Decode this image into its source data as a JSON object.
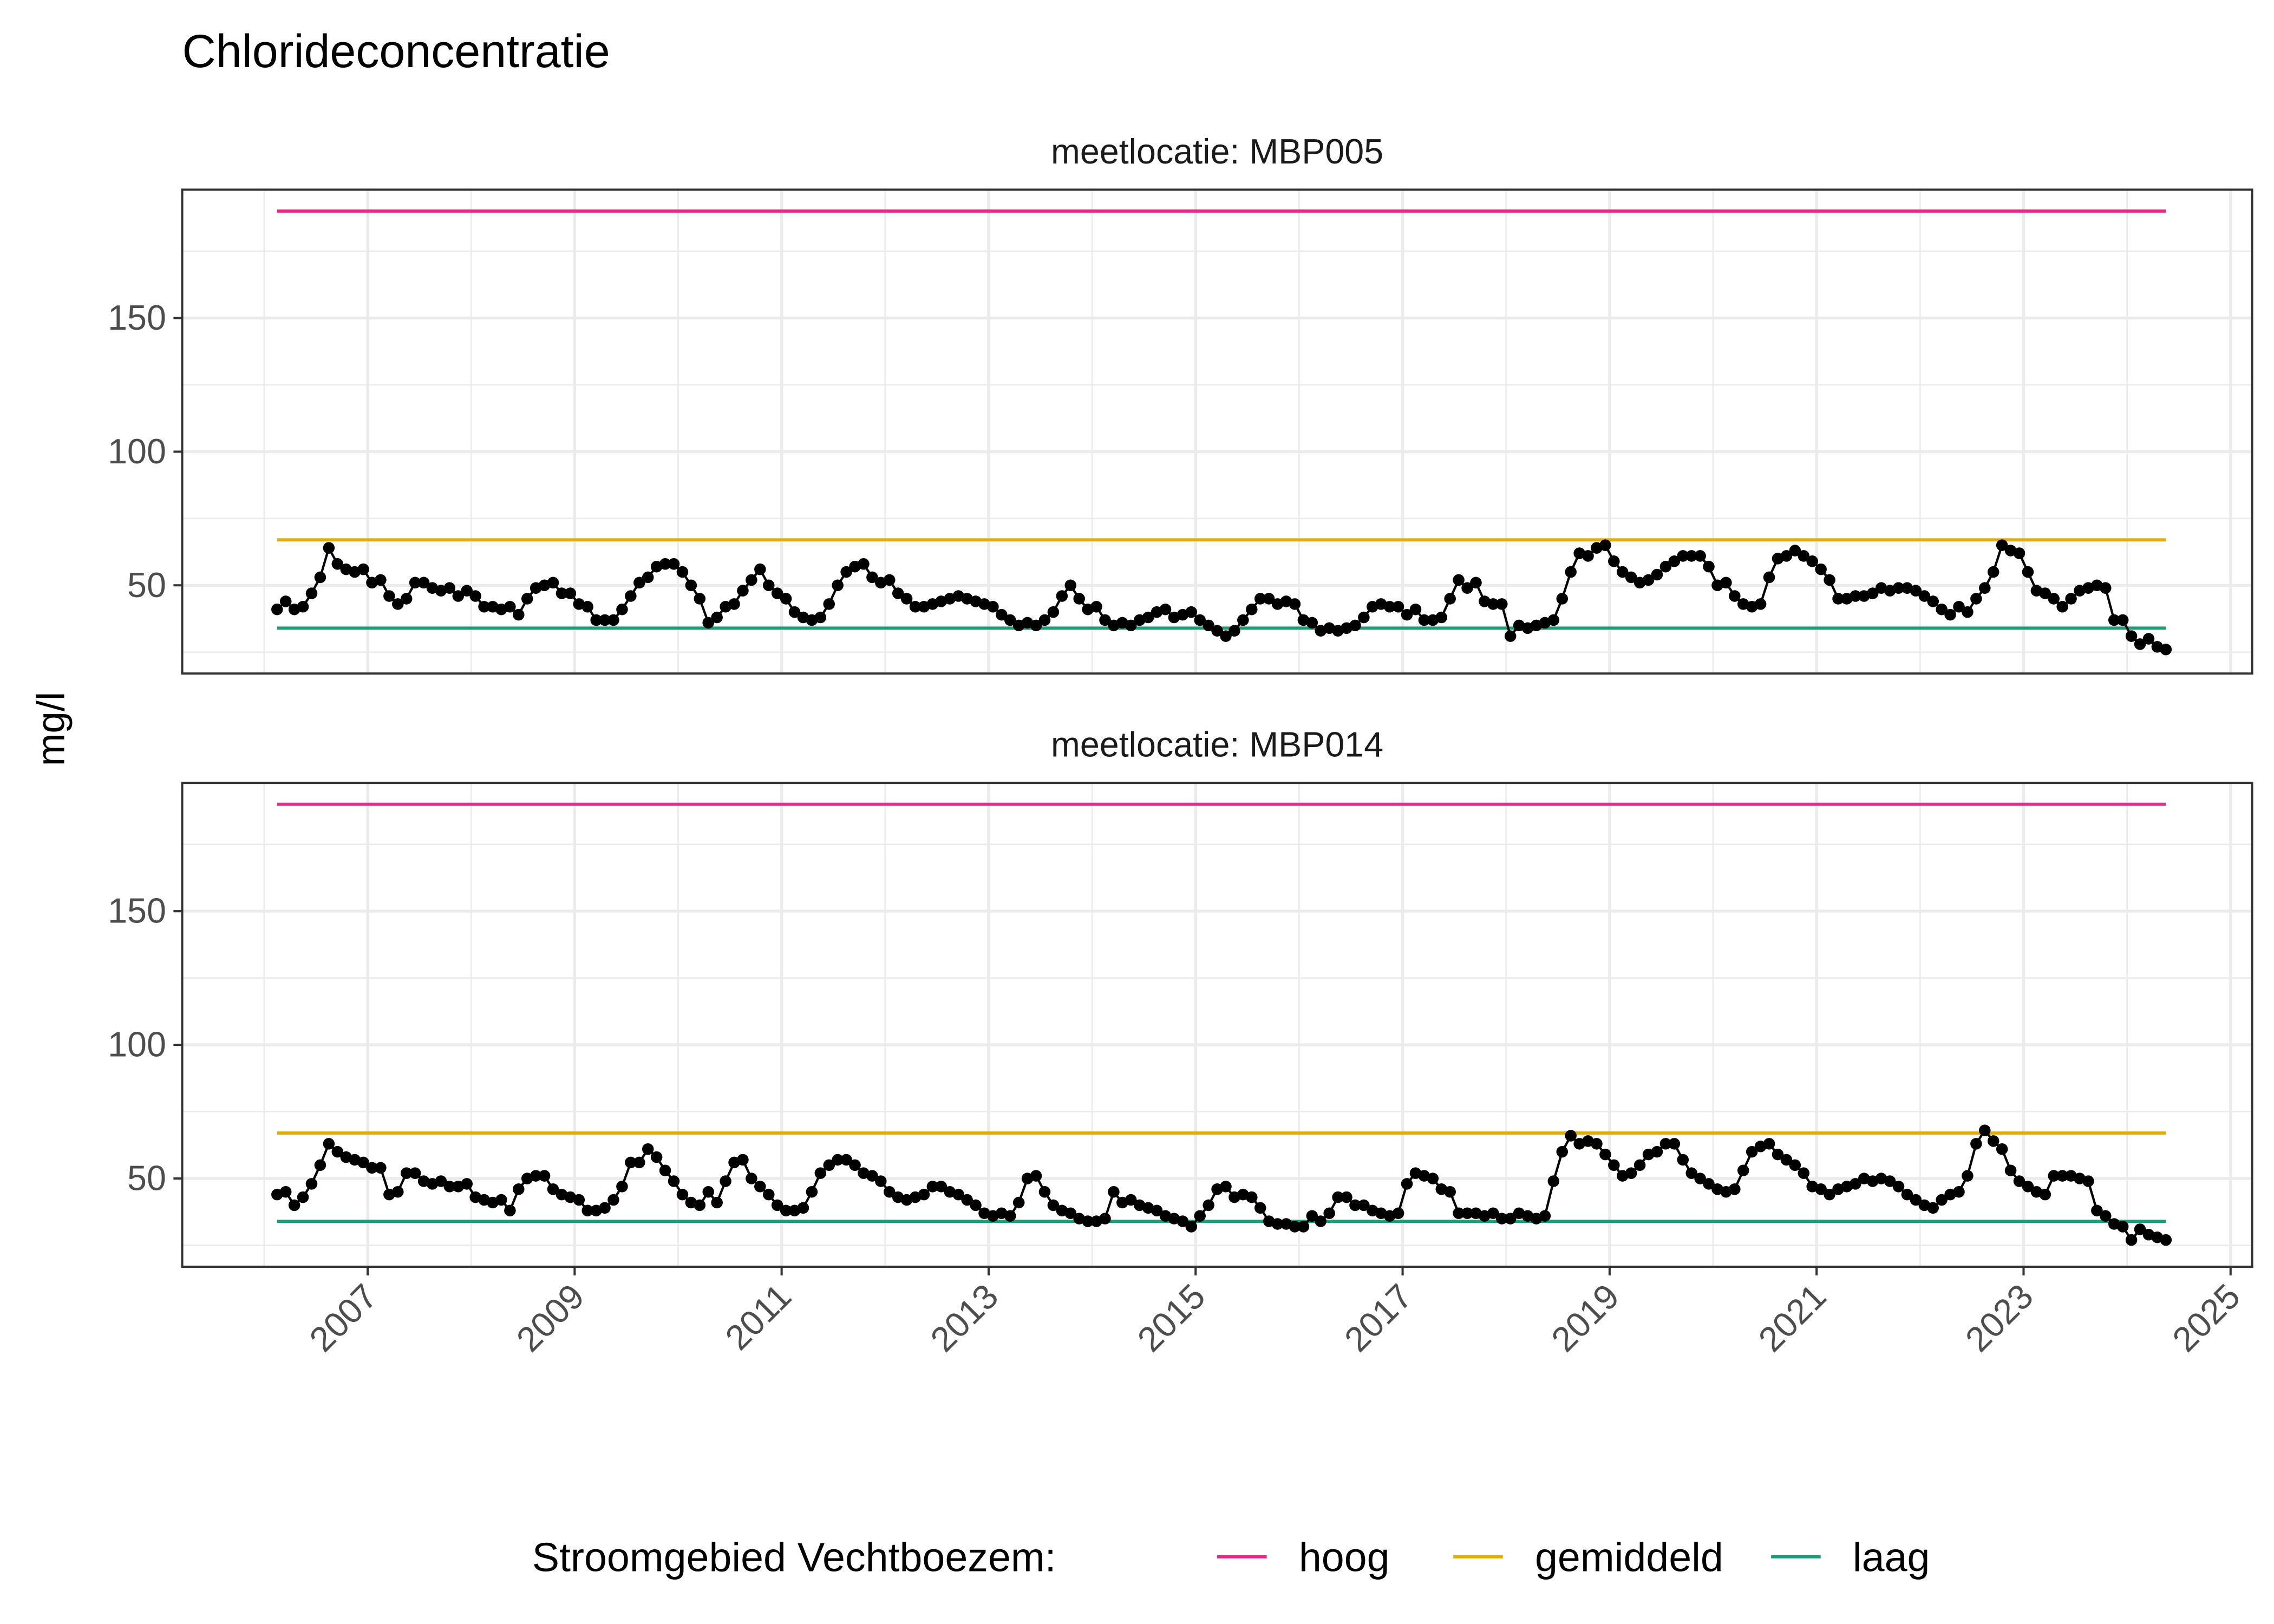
{
  "chart_data": {
    "type": "line",
    "title": "Chlorideconcentratie",
    "xlabel": "",
    "ylabel": "mg/l",
    "x_ticks": [
      "2007",
      "2009",
      "2011",
      "2013",
      "2015",
      "2017",
      "2019",
      "2021",
      "2023",
      "2025"
    ],
    "y_ticks": [
      "50",
      "100",
      "150"
    ],
    "xlim": [
      "2005-03",
      "2025-03"
    ],
    "ylim": [
      17,
      198
    ],
    "grid": true,
    "legend": {
      "title": "Stroomgebied Vechtboezem:",
      "placement": "bottom",
      "entries": [
        {
          "label": "hoog",
          "value": 190,
          "color": "#e7298a"
        },
        {
          "label": "gemiddeld",
          "value": 67,
          "color": "#e6ab02"
        },
        {
          "label": "laag",
          "value": 34,
          "color": "#1b9e77"
        }
      ]
    },
    "reference_span": [
      "2006-02",
      "2024-05"
    ],
    "x": [
      "2006-02",
      "2006-03",
      "2006-04",
      "2006-05",
      "2006-06",
      "2006-07",
      "2006-08",
      "2006-09",
      "2006-10",
      "2006-11",
      "2006-12",
      "2007-01",
      "2007-02",
      "2007-03",
      "2007-04",
      "2007-05",
      "2007-06",
      "2007-07",
      "2007-08",
      "2007-09",
      "2007-10",
      "2007-11",
      "2007-12",
      "2008-01",
      "2008-02",
      "2008-03",
      "2008-04",
      "2008-05",
      "2008-06",
      "2008-07",
      "2008-08",
      "2008-09",
      "2008-10",
      "2008-11",
      "2008-12",
      "2009-01",
      "2009-02",
      "2009-03",
      "2009-04",
      "2009-05",
      "2009-06",
      "2009-07",
      "2009-08",
      "2009-09",
      "2009-10",
      "2009-11",
      "2009-12",
      "2010-01",
      "2010-02",
      "2010-03",
      "2010-04",
      "2010-05",
      "2010-06",
      "2010-07",
      "2010-08",
      "2010-09",
      "2010-10",
      "2010-11",
      "2010-12",
      "2011-01",
      "2011-02",
      "2011-03",
      "2011-04",
      "2011-05",
      "2011-06",
      "2011-07",
      "2011-08",
      "2011-09",
      "2011-10",
      "2011-11",
      "2011-12",
      "2012-01",
      "2012-02",
      "2012-03",
      "2012-04",
      "2012-05",
      "2012-06",
      "2012-07",
      "2012-08",
      "2012-09",
      "2012-10",
      "2012-11",
      "2012-12",
      "2013-01",
      "2013-02",
      "2013-03",
      "2013-04",
      "2013-05",
      "2013-06",
      "2013-07",
      "2013-08",
      "2013-09",
      "2013-10",
      "2013-11",
      "2013-12",
      "2014-01",
      "2014-02",
      "2014-03",
      "2014-04",
      "2014-05",
      "2014-06",
      "2014-07",
      "2014-08",
      "2014-09",
      "2014-10",
      "2014-11",
      "2014-12",
      "2015-01",
      "2015-02",
      "2015-03",
      "2015-04",
      "2015-05",
      "2015-06",
      "2015-07",
      "2015-08",
      "2015-09",
      "2015-10",
      "2015-11",
      "2015-12",
      "2016-01",
      "2016-02",
      "2016-03",
      "2016-04",
      "2016-05",
      "2016-06",
      "2016-07",
      "2016-08",
      "2016-09",
      "2016-10",
      "2016-11",
      "2016-12",
      "2017-01",
      "2017-02",
      "2017-03",
      "2017-04",
      "2017-05",
      "2017-06",
      "2017-07",
      "2017-08",
      "2017-09",
      "2017-10",
      "2017-11",
      "2017-12",
      "2018-01",
      "2018-02",
      "2018-03",
      "2018-04",
      "2018-05",
      "2018-06",
      "2018-07",
      "2018-08",
      "2018-09",
      "2018-10",
      "2018-11",
      "2018-12",
      "2019-01",
      "2019-02",
      "2019-03",
      "2019-04",
      "2019-05",
      "2019-06",
      "2019-07",
      "2019-08",
      "2019-09",
      "2019-10",
      "2019-11",
      "2019-12",
      "2020-01",
      "2020-02",
      "2020-03",
      "2020-04",
      "2020-05",
      "2020-06",
      "2020-07",
      "2020-08",
      "2020-09",
      "2020-10",
      "2020-11",
      "2020-12",
      "2021-01",
      "2021-02",
      "2021-03",
      "2021-04",
      "2021-05",
      "2021-06",
      "2021-07",
      "2021-08",
      "2021-09",
      "2021-10",
      "2021-11",
      "2021-12",
      "2022-01",
      "2022-02",
      "2022-03",
      "2022-04",
      "2022-05",
      "2022-06",
      "2022-07",
      "2022-08",
      "2022-09",
      "2022-10",
      "2022-11",
      "2022-12",
      "2023-01",
      "2023-02",
      "2023-03",
      "2023-04",
      "2023-05",
      "2023-06",
      "2023-07",
      "2023-08",
      "2023-09",
      "2023-10",
      "2023-11",
      "2023-12",
      "2024-01",
      "2024-02",
      "2024-03",
      "2024-04",
      "2024-05"
    ],
    "panels": [
      {
        "strip": "meetlocatie: MBP005",
        "values": [
          41,
          44,
          41,
          42,
          47,
          53,
          64,
          58,
          56,
          55,
          56,
          51,
          52,
          46,
          43,
          45,
          51,
          51,
          49,
          48,
          49,
          46,
          48,
          46,
          42,
          42,
          41,
          42,
          39,
          45,
          49,
          50,
          51,
          47,
          47,
          43,
          42,
          37,
          37,
          37,
          41,
          46,
          51,
          53,
          57,
          58,
          58,
          55,
          50,
          45,
          36,
          38,
          42,
          43,
          48,
          52,
          56,
          50,
          47,
          45,
          40,
          38,
          37,
          38,
          43,
          50,
          55,
          57,
          58,
          53,
          51,
          52,
          47,
          45,
          42,
          42,
          43,
          44,
          45,
          46,
          45,
          44,
          43,
          42,
          39,
          37,
          35,
          36,
          35,
          37,
          40,
          46,
          50,
          45,
          41,
          42,
          37,
          35,
          36,
          35,
          37,
          38,
          40,
          41,
          38,
          39,
          40,
          37,
          35,
          33,
          31,
          33,
          37,
          41,
          45,
          45,
          43,
          44,
          43,
          37,
          36,
          33,
          34,
          33,
          34,
          35,
          38,
          42,
          43,
          42,
          42,
          39,
          41,
          37,
          37,
          38,
          45,
          52,
          49,
          51,
          44,
          43,
          43,
          31,
          35,
          34,
          35,
          36,
          37,
          45,
          55,
          62,
          61,
          64,
          65,
          59,
          55,
          53,
          51,
          52,
          54,
          57,
          59,
          61,
          61,
          61,
          57,
          50,
          51,
          46,
          43,
          42,
          43,
          53,
          60,
          61,
          63,
          61,
          59,
          56,
          52,
          45,
          45,
          46,
          46,
          47,
          49,
          48,
          49,
          49,
          48,
          46,
          44,
          41,
          39,
          42,
          40,
          45,
          49,
          55,
          65,
          63,
          62,
          55,
          48,
          47,
          45,
          42,
          45,
          48,
          49,
          50,
          49,
          37,
          37,
          31,
          28,
          30,
          27,
          26
        ]
      },
      {
        "strip": "meetlocatie: MBP014",
        "values": [
          44,
          45,
          40,
          43,
          48,
          55,
          63,
          60,
          58,
          57,
          56,
          54,
          54,
          44,
          45,
          52,
          52,
          49,
          48,
          49,
          47,
          47,
          48,
          43,
          42,
          41,
          42,
          38,
          46,
          50,
          51,
          51,
          46,
          44,
          43,
          42,
          38,
          38,
          39,
          42,
          47,
          56,
          56,
          61,
          58,
          53,
          49,
          44,
          41,
          40,
          45,
          41,
          49,
          56,
          57,
          50,
          47,
          44,
          40,
          38,
          38,
          39,
          45,
          52,
          55,
          57,
          57,
          55,
          52,
          51,
          49,
          45,
          43,
          42,
          43,
          44,
          47,
          47,
          45,
          44,
          42,
          40,
          37,
          36,
          37,
          36,
          41,
          50,
          51,
          45,
          40,
          38,
          37,
          35,
          34,
          34,
          35,
          45,
          41,
          42,
          40,
          39,
          38,
          36,
          35,
          34,
          32,
          36,
          40,
          46,
          47,
          43,
          44,
          43,
          39,
          34,
          33,
          33,
          32,
          32,
          36,
          34,
          37,
          43,
          43,
          40,
          40,
          38,
          37,
          36,
          37,
          48,
          52,
          51,
          50,
          46,
          45,
          37,
          37,
          37,
          36,
          37,
          35,
          35,
          37,
          36,
          35,
          36,
          49,
          60,
          66,
          63,
          64,
          63,
          59,
          55,
          51,
          52,
          55,
          59,
          60,
          63,
          63,
          57,
          52,
          50,
          48,
          46,
          45,
          46,
          53,
          60,
          62,
          63,
          59,
          57,
          55,
          52,
          47,
          46,
          44,
          46,
          47,
          48,
          50,
          49,
          50,
          49,
          47,
          44,
          42,
          40,
          39,
          42,
          44,
          45,
          51,
          63,
          68,
          64,
          61,
          53,
          49,
          47,
          45,
          44,
          51,
          51,
          51,
          50,
          49,
          38,
          36,
          33,
          32,
          27,
          31,
          29,
          28,
          27
        ]
      }
    ]
  }
}
